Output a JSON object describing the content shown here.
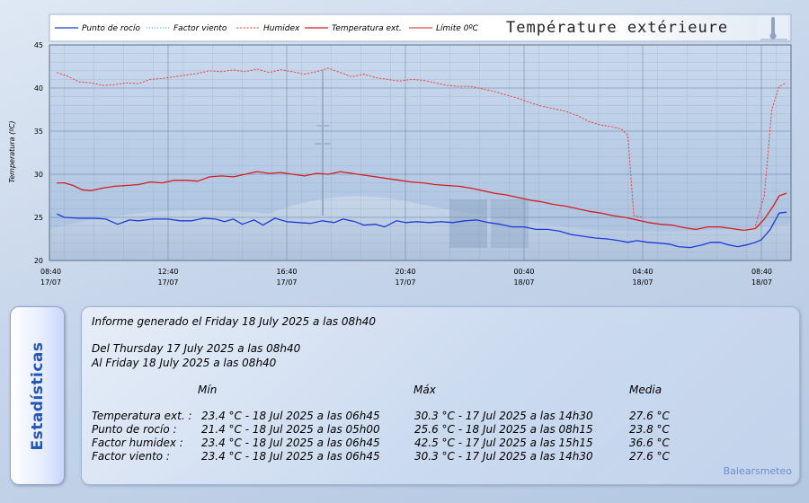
{
  "chart_data": {
    "type": "line",
    "title": "Température extérieure",
    "ylabel": "Temperatura (ºC)",
    "xlabel": "",
    "ylim": [
      20,
      45
    ],
    "yticks": [
      "20",
      "25",
      "30",
      "35",
      "40",
      "45"
    ],
    "xlim": [
      0,
      24
    ],
    "xticks": [
      {
        "pos": 0,
        "time": "08:40",
        "date": "17/07"
      },
      {
        "pos": 4,
        "time": "12:40",
        "date": "17/07"
      },
      {
        "pos": 8,
        "time": "16:40",
        "date": "17/07"
      },
      {
        "pos": 12,
        "time": "20:40",
        "date": "17/07"
      },
      {
        "pos": 16,
        "time": "00:40",
        "date": "18/07"
      },
      {
        "pos": 20,
        "time": "04:40",
        "date": "18/07"
      },
      {
        "pos": 24,
        "time": "08:40",
        "date": "18/07"
      }
    ],
    "legend_placement": "top",
    "grid": true,
    "series": [
      {
        "name": "Punto de rocío",
        "color": "#1a3cd8",
        "style": "solid",
        "width": 1.3,
        "show_line": true,
        "points": [
          [
            0.25,
            25.4
          ],
          [
            0.5,
            25.0
          ],
          [
            1,
            24.9
          ],
          [
            1.5,
            24.9
          ],
          [
            1.9,
            24.8
          ],
          [
            2.3,
            24.2
          ],
          [
            2.7,
            24.7
          ],
          [
            3,
            24.6
          ],
          [
            3.5,
            24.8
          ],
          [
            4,
            24.8
          ],
          [
            4.4,
            24.6
          ],
          [
            4.8,
            24.6
          ],
          [
            5.2,
            24.9
          ],
          [
            5.6,
            24.8
          ],
          [
            5.9,
            24.5
          ],
          [
            6.2,
            24.8
          ],
          [
            6.5,
            24.2
          ],
          [
            6.9,
            24.7
          ],
          [
            7.2,
            24.1
          ],
          [
            7.6,
            24.9
          ],
          [
            8,
            24.5
          ],
          [
            8.4,
            24.4
          ],
          [
            8.8,
            24.3
          ],
          [
            9.2,
            24.6
          ],
          [
            9.6,
            24.4
          ],
          [
            9.9,
            24.8
          ],
          [
            10.3,
            24.5
          ],
          [
            10.6,
            24.1
          ],
          [
            11,
            24.2
          ],
          [
            11.3,
            23.9
          ],
          [
            11.7,
            24.6
          ],
          [
            12,
            24.4
          ],
          [
            12.4,
            24.5
          ],
          [
            12.8,
            24.4
          ],
          [
            13.2,
            24.5
          ],
          [
            13.6,
            24.4
          ],
          [
            14,
            24.6
          ],
          [
            14.4,
            24.7
          ],
          [
            14.8,
            24.4
          ],
          [
            15.2,
            24.2
          ],
          [
            15.6,
            23.9
          ],
          [
            16,
            23.9
          ],
          [
            16.4,
            23.6
          ],
          [
            16.8,
            23.6
          ],
          [
            17.2,
            23.4
          ],
          [
            17.6,
            23.0
          ],
          [
            18,
            22.8
          ],
          [
            18.4,
            22.6
          ],
          [
            18.8,
            22.5
          ],
          [
            19.2,
            22.3
          ],
          [
            19.5,
            22.1
          ],
          [
            19.8,
            22.3
          ],
          [
            20.2,
            22.1
          ],
          [
            20.6,
            22.0
          ],
          [
            20.9,
            21.9
          ],
          [
            21.2,
            21.6
          ],
          [
            21.6,
            21.5
          ],
          [
            22,
            21.8
          ],
          [
            22.3,
            22.1
          ],
          [
            22.6,
            22.1
          ],
          [
            22.9,
            21.8
          ],
          [
            23.2,
            21.6
          ],
          [
            23.5,
            21.8
          ],
          [
            23.8,
            22.1
          ],
          [
            24,
            22.4
          ],
          [
            24.3,
            23.6
          ],
          [
            24.6,
            25.5
          ],
          [
            24.85,
            25.6
          ]
        ]
      },
      {
        "name": "Factor viento",
        "color": "#29b3d6",
        "style": "dotted",
        "width": 1,
        "show_line": false,
        "points": []
      },
      {
        "name": "Humidex",
        "color": "#e8473a",
        "style": "dashed",
        "width": 1,
        "show_line": true,
        "points": [
          [
            0.25,
            41.8
          ],
          [
            0.6,
            41.4
          ],
          [
            1,
            40.7
          ],
          [
            1.4,
            40.6
          ],
          [
            1.8,
            40.3
          ],
          [
            2.2,
            40.4
          ],
          [
            2.6,
            40.6
          ],
          [
            3,
            40.5
          ],
          [
            3.4,
            41.0
          ],
          [
            3.8,
            41.1
          ],
          [
            4.2,
            41.3
          ],
          [
            4.6,
            41.5
          ],
          [
            5,
            41.7
          ],
          [
            5.4,
            42.0
          ],
          [
            5.8,
            41.9
          ],
          [
            6.2,
            42.1
          ],
          [
            6.6,
            41.9
          ],
          [
            7,
            42.2
          ],
          [
            7.4,
            41.8
          ],
          [
            7.8,
            42.1
          ],
          [
            8.2,
            41.9
          ],
          [
            8.6,
            41.6
          ],
          [
            9,
            41.9
          ],
          [
            9.4,
            42.3
          ],
          [
            9.8,
            41.8
          ],
          [
            10.2,
            41.3
          ],
          [
            10.6,
            41.6
          ],
          [
            11,
            41.2
          ],
          [
            11.4,
            41.0
          ],
          [
            11.8,
            40.8
          ],
          [
            12.2,
            41.0
          ],
          [
            12.6,
            40.9
          ],
          [
            13,
            40.6
          ],
          [
            13.4,
            40.3
          ],
          [
            13.8,
            40.2
          ],
          [
            14.2,
            40.2
          ],
          [
            14.6,
            39.9
          ],
          [
            15,
            39.6
          ],
          [
            15.4,
            39.2
          ],
          [
            15.8,
            38.8
          ],
          [
            16.2,
            38.3
          ],
          [
            16.6,
            37.9
          ],
          [
            17,
            37.6
          ],
          [
            17.4,
            37.3
          ],
          [
            17.8,
            36.8
          ],
          [
            18.2,
            36.1
          ],
          [
            18.6,
            35.7
          ],
          [
            19,
            35.5
          ],
          [
            19.3,
            35.2
          ],
          [
            19.5,
            34.5
          ],
          [
            19.7,
            25.2
          ],
          [
            20,
            25.0
          ]
        ]
      },
      {
        "name": "Humidex",
        "color": "#e8473a",
        "style": "dashed",
        "width": 1,
        "show_line": true,
        "legend": false,
        "points": [
          [
            23.8,
            24.0
          ],
          [
            24.1,
            27.5
          ],
          [
            24.35,
            37.5
          ],
          [
            24.6,
            40.2
          ],
          [
            24.85,
            40.6
          ]
        ]
      },
      {
        "name": "Temperatura ext.",
        "color": "#d41d1d",
        "style": "solid",
        "width": 1.3,
        "show_line": true,
        "points": [
          [
            0.25,
            29.0
          ],
          [
            0.5,
            29.0
          ],
          [
            0.8,
            28.7
          ],
          [
            1.1,
            28.2
          ],
          [
            1.4,
            28.1
          ],
          [
            1.8,
            28.4
          ],
          [
            2.2,
            28.6
          ],
          [
            2.6,
            28.7
          ],
          [
            3,
            28.8
          ],
          [
            3.4,
            29.1
          ],
          [
            3.8,
            29.0
          ],
          [
            4.2,
            29.3
          ],
          [
            4.6,
            29.3
          ],
          [
            5,
            29.2
          ],
          [
            5.4,
            29.7
          ],
          [
            5.8,
            29.8
          ],
          [
            6.2,
            29.7
          ],
          [
            6.6,
            30.0
          ],
          [
            7,
            30.3
          ],
          [
            7.4,
            30.1
          ],
          [
            7.8,
            30.2
          ],
          [
            8.2,
            30.0
          ],
          [
            8.6,
            29.8
          ],
          [
            9,
            30.1
          ],
          [
            9.4,
            30.0
          ],
          [
            9.8,
            30.3
          ],
          [
            10.2,
            30.1
          ],
          [
            10.6,
            29.9
          ],
          [
            11,
            29.7
          ],
          [
            11.4,
            29.5
          ],
          [
            11.8,
            29.3
          ],
          [
            12.2,
            29.1
          ],
          [
            12.6,
            29.0
          ],
          [
            13,
            28.8
          ],
          [
            13.4,
            28.7
          ],
          [
            13.8,
            28.6
          ],
          [
            14.2,
            28.4
          ],
          [
            14.6,
            28.1
          ],
          [
            15,
            27.8
          ],
          [
            15.4,
            27.6
          ],
          [
            15.8,
            27.3
          ],
          [
            16.2,
            27.0
          ],
          [
            16.6,
            26.8
          ],
          [
            17,
            26.5
          ],
          [
            17.4,
            26.3
          ],
          [
            17.8,
            26.0
          ],
          [
            18.2,
            25.7
          ],
          [
            18.6,
            25.5
          ],
          [
            19,
            25.2
          ],
          [
            19.4,
            25.0
          ],
          [
            19.8,
            24.7
          ],
          [
            20.2,
            24.4
          ],
          [
            20.6,
            24.2
          ],
          [
            21,
            24.1
          ],
          [
            21.4,
            23.8
          ],
          [
            21.8,
            23.6
          ],
          [
            22.2,
            23.9
          ],
          [
            22.6,
            23.9
          ],
          [
            23,
            23.7
          ],
          [
            23.4,
            23.5
          ],
          [
            23.8,
            23.7
          ],
          [
            24.1,
            24.8
          ],
          [
            24.4,
            26.3
          ],
          [
            24.6,
            27.5
          ],
          [
            24.85,
            27.8
          ]
        ]
      },
      {
        "name": "Límite 0ºC",
        "color": "#d41d1d",
        "style": "solid",
        "width": 1,
        "show_line": false,
        "points": []
      }
    ]
  },
  "side_tab": {
    "label": "Estadísticas"
  },
  "stats": {
    "generated": "Informe generado el Friday 18 July 2025 a las 08h40",
    "from": "Del Thursday 17 July 2025 a las 08h40",
    "to": "Al Friday 18 July 2025 a las 08h40",
    "headers": {
      "min": "Mín",
      "max": "Máx",
      "avg": "Media"
    },
    "rows": [
      {
        "label": "Temperatura ext. :",
        "min": "23.4 °C - 18 Jul 2025 a las 06h45",
        "max": "30.3 °C - 17 Jul 2025 a las 14h30",
        "avg": "27.6 °C"
      },
      {
        "label": "Punto de rocío :",
        "min": "21.4 °C - 18 Jul 2025 a las 05h00",
        "max": "25.6 °C - 18 Jul 2025 a las 08h15",
        "avg": "23.8 °C"
      },
      {
        "label": "Factor humidex :",
        "min": "23.4 °C - 18 Jul 2025 a las 06h45",
        "max": "42.5 °C - 17 Jul 2025 a las 15h15",
        "avg": "36.6 °C"
      },
      {
        "label": "Factor viento :",
        "min": "23.4 °C - 18 Jul 2025 a las 06h45",
        "max": "30.3 °C - 17 Jul 2025 a las 14h30",
        "avg": "27.6 °C"
      }
    ],
    "credit": "Balearsmeteo"
  }
}
